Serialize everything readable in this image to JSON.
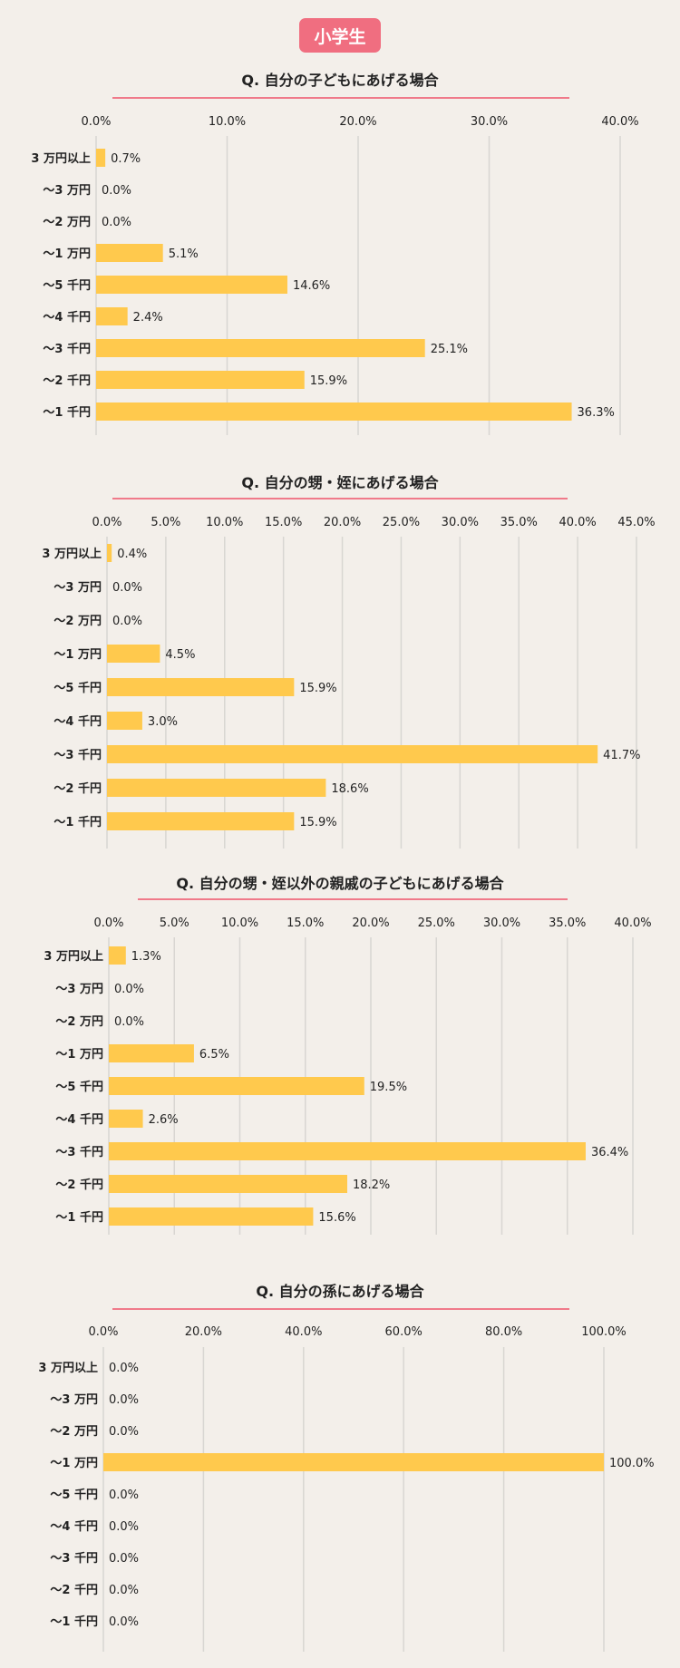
{
  "page": {
    "category_badge": "小学生"
  },
  "colors": {
    "badge": "#f06e80",
    "bar": "#ffc94d",
    "underline": "#f07a8a",
    "grid": "#d8d6d2"
  },
  "chart_data": [
    {
      "type": "bar",
      "title": "Q. 自分の子どもにあげる場合",
      "categories": [
        "3 万円以上",
        "～3 万円",
        "～2 万円",
        "～1 万円",
        "～5 千円",
        "～4 千円",
        "～3 千円",
        "～2 千円",
        "～1 千円"
      ],
      "values": [
        0.7,
        0.0,
        0.0,
        5.1,
        14.6,
        2.4,
        25.1,
        15.9,
        36.3
      ],
      "value_labels": [
        "0.7%",
        "0.0%",
        "0.0%",
        "5.1%",
        "14.6%",
        "2.4%",
        "25.1%",
        "15.9%",
        "36.3%"
      ],
      "ticks": [
        "0.0%",
        "10.0%",
        "20.0%",
        "30.0%",
        "40.0%"
      ],
      "xlim": [
        0,
        40
      ],
      "grid": true
    },
    {
      "type": "bar",
      "title": "Q. 自分の甥・姪にあげる場合",
      "categories": [
        "3 万円以上",
        "～3 万円",
        "～2 万円",
        "～1 万円",
        "～5 千円",
        "～4 千円",
        "～3 千円",
        "～2 千円",
        "～1 千円"
      ],
      "values": [
        0.4,
        0.0,
        0.0,
        4.5,
        15.9,
        3.0,
        41.7,
        18.6,
        15.9
      ],
      "value_labels": [
        "0.4%",
        "0.0%",
        "0.0%",
        "4.5%",
        "15.9%",
        "3.0%",
        "41.7%",
        "18.6%",
        "15.9%"
      ],
      "ticks": [
        "0.0%",
        "5.0%",
        "10.0%",
        "15.0%",
        "20.0%",
        "25.0%",
        "30.0%",
        "35.0%",
        "40.0%",
        "45.0%"
      ],
      "xlim": [
        0,
        45
      ],
      "grid": true
    },
    {
      "type": "bar",
      "title": "Q. 自分の甥・姪以外の親戚の子どもにあげる場合",
      "categories": [
        "3 万円以上",
        "～3 万円",
        "～2 万円",
        "～1 万円",
        "～5 千円",
        "～4 千円",
        "～3 千円",
        "～2 千円",
        "～1 千円"
      ],
      "values": [
        1.3,
        0.0,
        0.0,
        6.5,
        19.5,
        2.6,
        36.4,
        18.2,
        15.6
      ],
      "value_labels": [
        "1.3%",
        "0.0%",
        "0.0%",
        "6.5%",
        "19.5%",
        "2.6%",
        "36.4%",
        "18.2%",
        "15.6%"
      ],
      "ticks": [
        "0.0%",
        "5.0%",
        "10.0%",
        "15.0%",
        "20.0%",
        "25.0%",
        "30.0%",
        "35.0%",
        "40.0%"
      ],
      "xlim": [
        0,
        40
      ],
      "grid": true
    },
    {
      "type": "bar",
      "title": "Q. 自分の孫にあげる場合",
      "categories": [
        "3 万円以上",
        "～3 万円",
        "～2 万円",
        "～1 万円",
        "～5 千円",
        "～4 千円",
        "～3 千円",
        "～2 千円",
        "～1 千円"
      ],
      "values": [
        0.0,
        0.0,
        0.0,
        100.0,
        0.0,
        0.0,
        0.0,
        0.0,
        0.0
      ],
      "value_labels": [
        "0.0%",
        "0.0%",
        "0.0%",
        "100.0%",
        "0.0%",
        "0.0%",
        "0.0%",
        "0.0%",
        "0.0%"
      ],
      "ticks": [
        "0.0%",
        "20.0%",
        "40.0%",
        "60.0%",
        "80.0%",
        "100.0%"
      ],
      "xlim": [
        0,
        100
      ],
      "grid": true
    }
  ]
}
